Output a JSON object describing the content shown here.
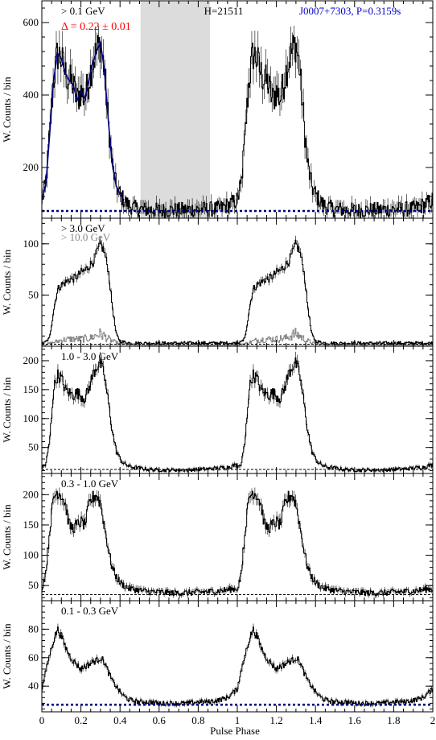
{
  "figure": {
    "xlabel": "Pulse Phase",
    "ylabel": "W. Counts / bin",
    "xlim": [
      0,
      2
    ],
    "xticks": [
      0,
      0.2,
      0.4,
      0.6,
      0.8,
      1,
      1.2,
      1.4,
      1.6,
      1.8,
      2
    ],
    "xtick_labels": [
      "0",
      "0.2",
      "0.4",
      "0.6",
      "0.8",
      "1",
      "1.2",
      "1.4",
      "1.6",
      "1.8",
      "2"
    ],
    "colors": {
      "hist": "#000000",
      "fit": "#000080",
      "blue_text": "#0000cc",
      "red_text": "#ff0000",
      "gray_hist": "#888888",
      "offpulse": "#dcdcdc"
    }
  },
  "chart_data": [
    {
      "type": "line",
      "panel": "> 0.1 GeV",
      "annotations": {
        "energy": "> 0.1 GeV",
        "delta": "Δ = 0.22 ± 0.01",
        "htest": "H=21511",
        "source": "J0007+7303, P=0.3159s"
      },
      "ylim": [
        60,
        660
      ],
      "yticks": [
        200,
        400,
        600
      ],
      "background_level": 80,
      "offpulse_region": [
        0.505,
        0.86
      ],
      "profile": {
        "x": [
          0,
          0.02,
          0.04,
          0.06,
          0.08,
          0.1,
          0.12,
          0.14,
          0.16,
          0.18,
          0.2,
          0.22,
          0.24,
          0.26,
          0.28,
          0.3,
          0.32,
          0.34,
          0.36,
          0.38,
          0.4,
          0.42,
          0.44,
          0.46,
          0.48,
          0.5,
          0.55,
          0.6,
          0.65,
          0.7,
          0.75,
          0.8,
          0.85,
          0.9,
          0.95,
          1.0
        ],
        "y": [
          110,
          150,
          290,
          440,
          515,
          500,
          460,
          440,
          430,
          385,
          410,
          390,
          440,
          490,
          520,
          545,
          470,
          330,
          210,
          150,
          125,
          110,
          98,
          92,
          88,
          85,
          83,
          82,
          82,
          83,
          84,
          84,
          85,
          86,
          95,
          110
        ]
      },
      "fit": {
        "x_start": 0,
        "x_end": 0.42
      }
    },
    {
      "type": "line",
      "panel": "> 3.0 GeV",
      "annotations": {
        "energy": "> 3.0 GeV",
        "energy2": "> 10.0 GeV"
      },
      "ylim": [
        0,
        125
      ],
      "yticks": [
        50,
        100
      ],
      "background_level": 2,
      "profile": {
        "x": [
          0,
          0.02,
          0.04,
          0.06,
          0.08,
          0.1,
          0.12,
          0.14,
          0.16,
          0.18,
          0.2,
          0.22,
          0.24,
          0.26,
          0.28,
          0.3,
          0.32,
          0.34,
          0.36,
          0.38,
          0.4,
          0.45,
          0.5,
          0.55,
          0.6,
          0.65,
          0.7,
          0.75,
          0.8,
          0.85,
          0.9,
          0.95,
          1.0
        ],
        "y": [
          3,
          4,
          8,
          35,
          55,
          60,
          62,
          65,
          66,
          68,
          72,
          74,
          78,
          82,
          90,
          100,
          92,
          75,
          40,
          12,
          5,
          3,
          3,
          3,
          3,
          3,
          3,
          3,
          3,
          3,
          3,
          3,
          3
        ]
      },
      "profile_gt10": {
        "x": [
          0,
          0.05,
          0.1,
          0.15,
          0.2,
          0.25,
          0.28,
          0.3,
          0.32,
          0.35,
          0.4,
          0.5,
          0.6,
          0.7,
          0.8,
          0.9,
          1.0
        ],
        "y": [
          1,
          3,
          6,
          7,
          7,
          8,
          11,
          12,
          10,
          6,
          2,
          1,
          1,
          1,
          1,
          1,
          1
        ]
      }
    },
    {
      "type": "line",
      "panel": "1.0 - 3.0 GeV",
      "annotations": {
        "energy": "1.0 - 3.0 GeV"
      },
      "ylim": [
        5,
        225
      ],
      "yticks": [
        50,
        100,
        150,
        200
      ],
      "background_level": 12,
      "profile": {
        "x": [
          0,
          0.02,
          0.04,
          0.06,
          0.08,
          0.1,
          0.12,
          0.14,
          0.16,
          0.18,
          0.2,
          0.22,
          0.24,
          0.26,
          0.28,
          0.3,
          0.32,
          0.34,
          0.36,
          0.38,
          0.4,
          0.42,
          0.45,
          0.5,
          0.55,
          0.6,
          0.65,
          0.7,
          0.75,
          0.8,
          0.85,
          0.9,
          0.95,
          1.0
        ],
        "y": [
          15,
          20,
          60,
          150,
          175,
          170,
          150,
          145,
          140,
          145,
          140,
          135,
          150,
          175,
          190,
          195,
          175,
          130,
          80,
          45,
          30,
          22,
          17,
          14,
          12,
          11,
          11,
          11,
          11,
          12,
          13,
          14,
          16,
          20
        ]
      }
    },
    {
      "type": "line",
      "panel": "0.3 - 1.0 GeV",
      "annotations": {
        "energy": "0.3 - 1.0 GeV"
      },
      "ylim": [
        25,
        235
      ],
      "yticks": [
        50,
        100,
        150,
        200
      ],
      "background_level": 35,
      "profile": {
        "x": [
          0,
          0.02,
          0.04,
          0.06,
          0.08,
          0.1,
          0.12,
          0.14,
          0.16,
          0.18,
          0.2,
          0.22,
          0.24,
          0.26,
          0.28,
          0.3,
          0.32,
          0.34,
          0.36,
          0.38,
          0.4,
          0.42,
          0.45,
          0.5,
          0.55,
          0.6,
          0.65,
          0.7,
          0.75,
          0.8,
          0.85,
          0.9,
          0.95,
          1.0
        ],
        "y": [
          45,
          70,
          140,
          195,
          205,
          200,
          185,
          150,
          145,
          150,
          155,
          150,
          180,
          195,
          200,
          185,
          150,
          110,
          80,
          65,
          55,
          50,
          45,
          42,
          40,
          39,
          38,
          38,
          38,
          39,
          40,
          41,
          43,
          45
        ]
      }
    },
    {
      "type": "line",
      "panel": "0.1 - 0.3 GeV",
      "annotations": {
        "energy": "0.1 - 0.3 GeV"
      },
      "ylim": [
        22,
        100
      ],
      "yticks": [
        40,
        60,
        80
      ],
      "background_level": 27,
      "profile": {
        "x": [
          0,
          0.02,
          0.04,
          0.06,
          0.08,
          0.1,
          0.12,
          0.14,
          0.16,
          0.18,
          0.2,
          0.22,
          0.24,
          0.26,
          0.28,
          0.3,
          0.32,
          0.34,
          0.36,
          0.38,
          0.4,
          0.42,
          0.44,
          0.46,
          0.5,
          0.55,
          0.6,
          0.65,
          0.7,
          0.75,
          0.8,
          0.85,
          0.9,
          0.95,
          1.0
        ],
        "y": [
          38,
          50,
          62,
          72,
          80,
          75,
          68,
          62,
          58,
          55,
          52,
          54,
          55,
          57,
          58,
          60,
          57,
          50,
          44,
          40,
          36,
          33,
          31,
          30,
          29,
          29,
          28,
          28,
          28,
          28,
          29,
          29,
          30,
          32,
          38
        ]
      }
    }
  ]
}
